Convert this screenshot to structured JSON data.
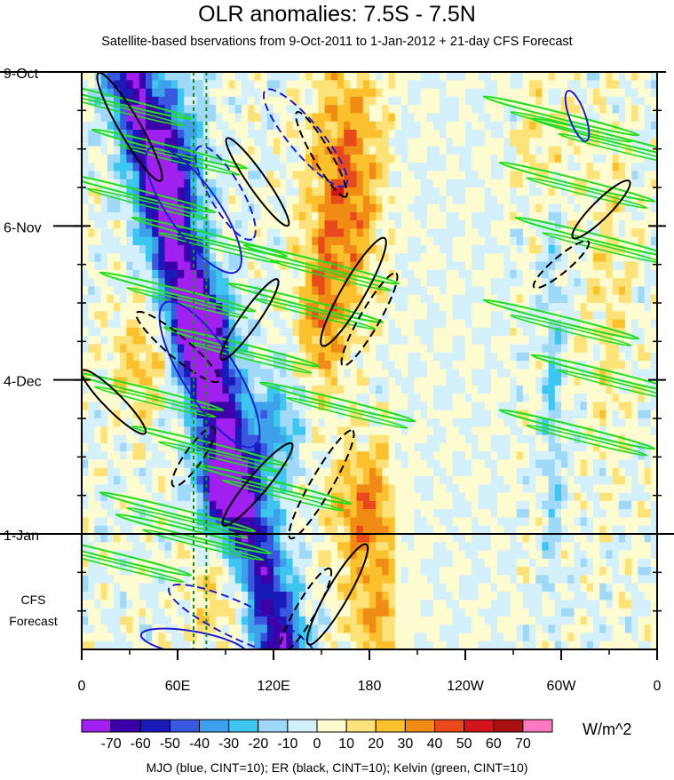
{
  "chart_data": {
    "type": "heatmap",
    "title": "OLR anomalies: 7.5S - 7.5N",
    "subtitle": "Satellite-based bservations from 9-Oct-2011 to 1-Jan-2012 + 21-day CFS Forecast",
    "x_tick_labels": [
      "0",
      "60E",
      "120E",
      "180",
      "120W",
      "60W",
      "0"
    ],
    "x_tick_values_deg_east": [
      0,
      60,
      120,
      180,
      240,
      300,
      360
    ],
    "y_tick_labels": [
      "9-Oct",
      "6-Nov",
      "4-Dec",
      "1-Jan"
    ],
    "y_tick_values_day": [
      0,
      28,
      56,
      84
    ],
    "ylim_days": [
      0,
      105
    ],
    "forecast_start_day": 84,
    "forecast_label_line1": "CFS",
    "forecast_label_line2": "Forecast",
    "vertical_reference_lines_deg_east": [
      70,
      78
    ],
    "colorbar_levels": [
      "-70",
      "-60",
      "-50",
      "-40",
      "-30",
      "-20",
      "-10",
      "0",
      "10",
      "20",
      "30",
      "40",
      "50",
      "60",
      "70"
    ],
    "colorbar_colors": [
      "#a021ef",
      "#3c00a8",
      "#1a1ab8",
      "#3a57e0",
      "#3ea0e8",
      "#3cc6f0",
      "#a0d8f7",
      "#d4f0fa",
      "#fdfbd0",
      "#fde27a",
      "#fbc02d",
      "#f08c15",
      "#e84a1c",
      "#d3141c",
      "#a81212",
      "#ff79c0"
    ],
    "units": "W/m^2",
    "footnote": "MJO (blue, CINT=10); ER (black, CINT=10); Kelvin (green, CINT=10)",
    "contour_colors": {
      "mjo": "#1f1fd0",
      "er": "#000000",
      "kelvin": "#22dd22"
    }
  }
}
